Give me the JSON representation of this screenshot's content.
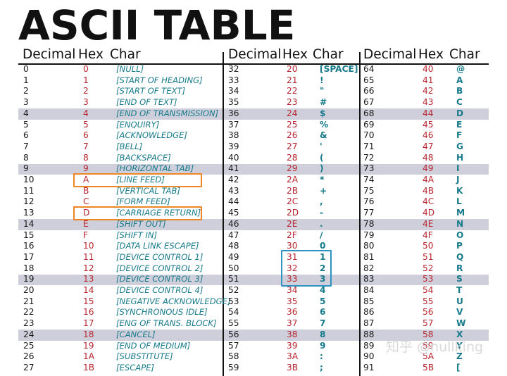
{
  "title": "ASCII TABLE",
  "headers": {
    "decimal": "Decimal",
    "hex": "Hex",
    "char": "Char"
  },
  "colors": {
    "band": "#cfcfdc",
    "hex": "#b8252e",
    "char": "#177a8a",
    "highlight_orange": "#ef8626",
    "highlight_blue": "#2d93c2"
  },
  "rows": [
    [
      [
        "0",
        "0",
        "[NULL]"
      ],
      [
        "32",
        "20",
        "[SPACE]"
      ],
      [
        "64",
        "40",
        "@"
      ]
    ],
    [
      [
        "1",
        "1",
        "[START OF HEADING]"
      ],
      [
        "33",
        "21",
        "!"
      ],
      [
        "65",
        "41",
        "A"
      ]
    ],
    [
      [
        "2",
        "2",
        "[START OF TEXT]"
      ],
      [
        "34",
        "22",
        "\""
      ],
      [
        "66",
        "42",
        "B"
      ]
    ],
    [
      [
        "3",
        "3",
        "[END OF TEXT]"
      ],
      [
        "35",
        "23",
        "#"
      ],
      [
        "67",
        "43",
        "C"
      ]
    ],
    [
      [
        "4",
        "4",
        "[END OF TRANSMISSION]"
      ],
      [
        "36",
        "24",
        "$"
      ],
      [
        "68",
        "44",
        "D"
      ]
    ],
    [
      [
        "5",
        "5",
        "[ENQUIRY]"
      ],
      [
        "37",
        "25",
        "%"
      ],
      [
        "69",
        "45",
        "E"
      ]
    ],
    [
      [
        "6",
        "6",
        "[ACKNOWLEDGE]"
      ],
      [
        "38",
        "26",
        "&"
      ],
      [
        "70",
        "46",
        "F"
      ]
    ],
    [
      [
        "7",
        "7",
        "[BELL]"
      ],
      [
        "39",
        "27",
        "'"
      ],
      [
        "71",
        "47",
        "G"
      ]
    ],
    [
      [
        "8",
        "8",
        "[BACKSPACE]"
      ],
      [
        "40",
        "28",
        "("
      ],
      [
        "72",
        "48",
        "H"
      ]
    ],
    [
      [
        "9",
        "9",
        "[HORIZONTAL TAB]"
      ],
      [
        "41",
        "29",
        ")"
      ],
      [
        "73",
        "49",
        "I"
      ]
    ],
    [
      [
        "10",
        "A",
        "[LINE FEED]"
      ],
      [
        "42",
        "2A",
        "*"
      ],
      [
        "74",
        "4A",
        "J"
      ]
    ],
    [
      [
        "11",
        "B",
        "[VERTICAL TAB]"
      ],
      [
        "43",
        "2B",
        "+"
      ],
      [
        "75",
        "4B",
        "K"
      ]
    ],
    [
      [
        "12",
        "C",
        "[FORM FEED]"
      ],
      [
        "44",
        "2C",
        ","
      ],
      [
        "76",
        "4C",
        "L"
      ]
    ],
    [
      [
        "13",
        "D",
        "[CARRIAGE RETURN]"
      ],
      [
        "45",
        "2D",
        "-"
      ],
      [
        "77",
        "4D",
        "M"
      ]
    ],
    [
      [
        "14",
        "E",
        "[SHIFT OUT]"
      ],
      [
        "46",
        "2E",
        "."
      ],
      [
        "78",
        "4E",
        "N"
      ]
    ],
    [
      [
        "15",
        "F",
        "[SHIFT IN]"
      ],
      [
        "47",
        "2F",
        "/"
      ],
      [
        "79",
        "4F",
        "O"
      ]
    ],
    [
      [
        "16",
        "10",
        "[DATA LINK ESCAPE]"
      ],
      [
        "48",
        "30",
        "0"
      ],
      [
        "80",
        "50",
        "P"
      ]
    ],
    [
      [
        "17",
        "11",
        "[DEVICE CONTROL 1]"
      ],
      [
        "49",
        "31",
        "1"
      ],
      [
        "81",
        "51",
        "Q"
      ]
    ],
    [
      [
        "18",
        "12",
        "[DEVICE CONTROL 2]"
      ],
      [
        "50",
        "32",
        "2"
      ],
      [
        "82",
        "52",
        "R"
      ]
    ],
    [
      [
        "19",
        "13",
        "[DEVICE CONTROL 3]"
      ],
      [
        "51",
        "33",
        "3"
      ],
      [
        "83",
        "53",
        "S"
      ]
    ],
    [
      [
        "20",
        "14",
        "[DEVICE CONTROL 4]"
      ],
      [
        "52",
        "34",
        "4"
      ],
      [
        "84",
        "54",
        "T"
      ]
    ],
    [
      [
        "21",
        "15",
        "[NEGATIVE ACKNOWLEDGE]"
      ],
      [
        "53",
        "35",
        "5"
      ],
      [
        "85",
        "55",
        "U"
      ]
    ],
    [
      [
        "22",
        "16",
        "[SYNCHRONOUS IDLE]"
      ],
      [
        "54",
        "36",
        "6"
      ],
      [
        "86",
        "56",
        "V"
      ]
    ],
    [
      [
        "23",
        "17",
        "[ENG OF TRANS. BLOCK]"
      ],
      [
        "55",
        "37",
        "7"
      ],
      [
        "87",
        "57",
        "W"
      ]
    ],
    [
      [
        "24",
        "18",
        "[CANCEL]"
      ],
      [
        "56",
        "38",
        "8"
      ],
      [
        "88",
        "58",
        "X"
      ]
    ],
    [
      [
        "25",
        "19",
        "[END OF MEDIUM]"
      ],
      [
        "57",
        "39",
        "9"
      ],
      [
        "89",
        "59",
        "Y"
      ]
    ],
    [
      [
        "26",
        "1A",
        "[SUBSTITUTE]"
      ],
      [
        "58",
        "3A",
        ":"
      ],
      [
        "90",
        "5A",
        "Z"
      ]
    ],
    [
      [
        "27",
        "1B",
        "[ESCAPE]"
      ],
      [
        "59",
        "3B",
        ";"
      ],
      [
        "91",
        "5B",
        "["
      ]
    ]
  ],
  "shaded_rows": [
    4,
    9,
    14,
    19,
    24
  ],
  "highlights": {
    "orange_rows": [
      10,
      13
    ],
    "blue_rows": [
      17,
      18,
      19
    ]
  },
  "watermark": "知乎 @nullking"
}
